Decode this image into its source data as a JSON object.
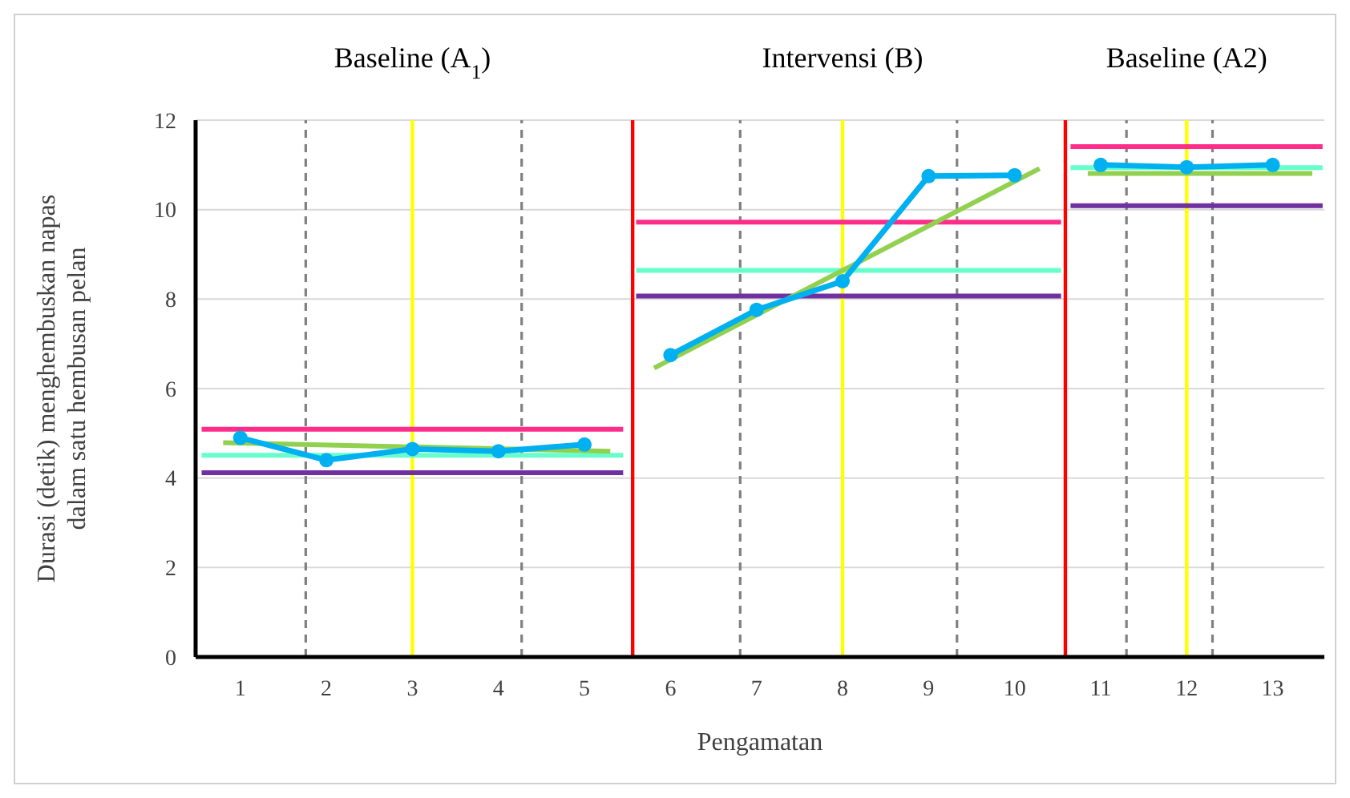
{
  "chart_data": {
    "type": "line",
    "xlabel": "Pengamatan",
    "ylabel": "Durasi (detik) menghembuskan napas\ndalam satu hembusan pelan",
    "xlim": [
      0.48,
      13.6
    ],
    "xticks": [
      1,
      2,
      3,
      4,
      5,
      6,
      7,
      8,
      9,
      10,
      11,
      12,
      13
    ],
    "ylim": [
      0,
      12
    ],
    "yticks": [
      0,
      2,
      4,
      6,
      8,
      10,
      12
    ],
    "grid": "y",
    "annotations": [
      "Baseline (A$_{1}$)",
      "Intervensi (B)",
      "Baseline (A2)"
    ],
    "series": [
      {
        "color": "#00b0f0",
        "marker": "circle",
        "x": [
          1,
          2,
          3,
          4,
          5
        ],
        "values": [
          4.9,
          4.4,
          4.65,
          4.6,
          4.75
        ]
      },
      {
        "color": "#00b0f0",
        "marker": "circle",
        "x": [
          6,
          7,
          8,
          9,
          10
        ],
        "values": [
          6.75,
          7.76,
          8.4,
          10.75,
          10.77
        ]
      },
      {
        "color": "#00b0f0",
        "marker": "circle",
        "x": [
          11,
          12,
          13
        ],
        "values": [
          11.0,
          10.95,
          11.0
        ]
      },
      {
        "color": "#ff2d8a",
        "marker": "none",
        "x": [
          0.55,
          5.45
        ],
        "values": [
          5.09,
          5.09
        ]
      },
      {
        "color": "#66ffcc",
        "marker": "none",
        "x": [
          0.55,
          5.45
        ],
        "values": [
          4.51,
          4.51
        ]
      },
      {
        "color": "#7030a0",
        "marker": "none",
        "x": [
          0.55,
          5.45
        ],
        "values": [
          4.12,
          4.12
        ]
      },
      {
        "color": "#92d050",
        "marker": "none",
        "x": [
          0.8,
          5.3
        ],
        "values": [
          4.79,
          4.6
        ]
      },
      {
        "color": "#ff2d8a",
        "marker": "none",
        "x": [
          5.6,
          10.54
        ],
        "values": [
          9.72,
          9.72
        ]
      },
      {
        "color": "#66ffcc",
        "marker": "none",
        "x": [
          5.6,
          10.54
        ],
        "values": [
          8.64,
          8.64
        ]
      },
      {
        "color": "#7030a0",
        "marker": "none",
        "x": [
          5.6,
          10.54
        ],
        "values": [
          8.07,
          8.07
        ]
      },
      {
        "color": "#92d050",
        "marker": "none",
        "x": [
          5.81,
          10.29
        ],
        "values": [
          6.46,
          10.92
        ]
      },
      {
        "color": "#ff2d8a",
        "marker": "none",
        "x": [
          10.65,
          13.58
        ],
        "values": [
          11.41,
          11.41
        ]
      },
      {
        "color": "#66ffcc",
        "marker": "none",
        "x": [
          10.65,
          13.58
        ],
        "values": [
          10.94,
          10.94
        ]
      },
      {
        "color": "#7030a0",
        "marker": "none",
        "x": [
          10.65,
          13.58
        ],
        "values": [
          10.09,
          10.09
        ]
      },
      {
        "color": "#92d050",
        "marker": "none",
        "x": [
          10.85,
          13.46
        ],
        "values": [
          10.81,
          10.81
        ]
      }
    ],
    "ref_lines": [
      {
        "axis": "x",
        "value": 1.76,
        "color": "#808080",
        "line_style": "dashed"
      },
      {
        "axis": "x",
        "value": 3,
        "color": "#ffff00",
        "line_style": "solid"
      },
      {
        "axis": "x",
        "value": 4.27,
        "color": "#808080",
        "line_style": "dashed"
      },
      {
        "axis": "x",
        "value": 5.56,
        "color": "#ff0000",
        "line_style": "solid"
      },
      {
        "axis": "x",
        "value": 6.81,
        "color": "#808080",
        "line_style": "dashed"
      },
      {
        "axis": "x",
        "value": 8,
        "color": "#ffff00",
        "line_style": "solid"
      },
      {
        "axis": "x",
        "value": 9.33,
        "color": "#808080",
        "line_style": "dashed"
      },
      {
        "axis": "x",
        "value": 10.59,
        "color": "#ff0000",
        "line_style": "solid"
      },
      {
        "axis": "x",
        "value": 11.3,
        "color": "#808080",
        "line_style": "dashed"
      },
      {
        "axis": "x",
        "value": 12,
        "color": "#ffff00",
        "line_style": "solid"
      },
      {
        "axis": "x",
        "value": 12.3,
        "color": "#808080",
        "line_style": "dashed"
      }
    ]
  }
}
